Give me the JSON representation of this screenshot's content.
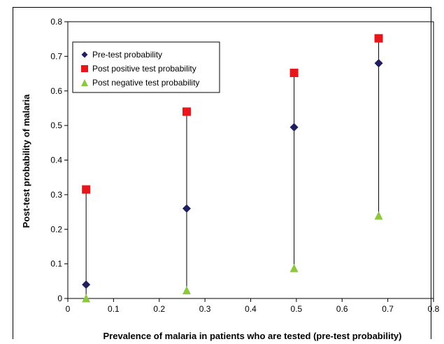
{
  "chart_data": {
    "type": "scatter",
    "title": "",
    "xlabel": "Prevalence of malaria in patients who are tested (pre-test probability)",
    "ylabel": "Post-test probability of malaria",
    "xlim": [
      0,
      0.8
    ],
    "ylim": [
      0,
      0.8
    ],
    "x_ticks": [
      "0",
      "0.1",
      "0.2",
      "0.3",
      "0.4",
      "0.5",
      "0.6",
      "0.7",
      "0.8"
    ],
    "y_ticks": [
      "0",
      "0.1",
      "0.2",
      "0.3",
      "0.4",
      "0.5",
      "0.6",
      "0.7",
      "0.8"
    ],
    "grid": false,
    "legend_position": "top-left",
    "x": [
      0.04,
      0.26,
      0.495,
      0.68
    ],
    "series": [
      {
        "name": "Pre-test probability",
        "marker": "diamond",
        "color": "#1f1f5e",
        "values": [
          0.04,
          0.26,
          0.495,
          0.68
        ]
      },
      {
        "name": "Post positive test probability",
        "marker": "square",
        "color": "#e8161b",
        "values": [
          0.315,
          0.54,
          0.652,
          0.752
        ]
      },
      {
        "name": "Post negative test probability",
        "marker": "triangle",
        "color": "#8dc63f",
        "values": [
          0.001,
          0.024,
          0.088,
          0.24
        ]
      }
    ],
    "connector_color": "#000000"
  }
}
